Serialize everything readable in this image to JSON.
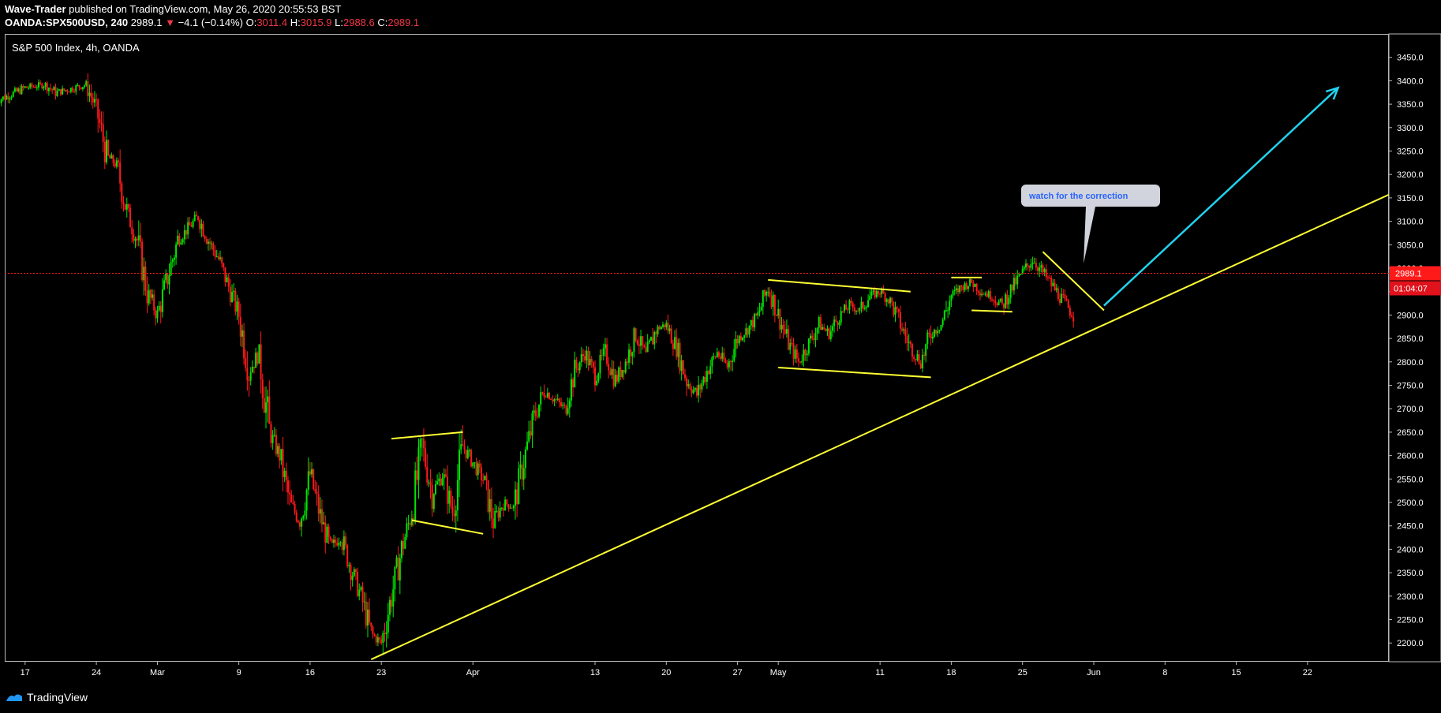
{
  "header": {
    "author": "Wave-Trader",
    "published_text": " published on TradingView.com, May 26, 2020 20:55:53 BST",
    "symbol": "OANDA:SPX500USD, 240",
    "last": "2989.1",
    "down_arrow": "▼",
    "change": "−4.1 (−0.14%)",
    "o_label": "O:",
    "o_value": "3011.4",
    "h_label": "H:",
    "h_value": "3015.9",
    "l_label": "L:",
    "l_value": "2988.6",
    "c_label": "C:",
    "c_value": "2989.1"
  },
  "chart_title": "S&P 500 Index, 4h, OANDA",
  "price_label": "2989.1",
  "countdown": "01:04:07",
  "annotation": "watch for the correction",
  "footer": {
    "brand": "TradingView",
    "logo_icon": "tradingview-logo-icon"
  },
  "colors": {
    "up": "#00e600",
    "down": "#ff1a1a",
    "trendline": "#ffff33",
    "projection": "#22d3ee",
    "current_price": "#ff1a1a",
    "annotation_bg": "#d1d4dc",
    "annotation_text": "#2962ff"
  },
  "chart_data": {
    "type": "candlestick",
    "title": "S&P 500 Index, 4h, OANDA",
    "ylim": [
      2160,
      3500
    ],
    "y_ticks": [
      2200,
      2250,
      2300,
      2350,
      2400,
      2450,
      2500,
      2550,
      2600,
      2650,
      2700,
      2750,
      2800,
      2850,
      2900,
      2950,
      3000,
      3050,
      3100,
      3150,
      3200,
      3250,
      3300,
      3350,
      3400,
      3450
    ],
    "y_tick_labels": [
      "2200.0",
      "2250.0",
      "2300.0",
      "2350.0",
      "2400.0",
      "2450.0",
      "2500.0",
      "2550.0",
      "2600.0",
      "2650.0",
      "2700.0",
      "2750.0",
      "2800.0",
      "2850.0",
      "2900.0",
      "2950.0",
      "3000.0",
      "3050.0",
      "3100.0",
      "3150.0",
      "3200.0",
      "3250.0",
      "3300.0",
      "3350.0",
      "3400.0",
      "3450.0"
    ],
    "x_range": [
      "2020-02-15",
      "2020-06-30"
    ],
    "x_ticks": [
      "2020-02-17",
      "2020-02-24",
      "2020-03-01",
      "2020-03-09",
      "2020-03-16",
      "2020-03-23",
      "2020-04-01",
      "2020-04-13",
      "2020-04-20",
      "2020-04-27",
      "2020-05-01",
      "2020-05-11",
      "2020-05-18",
      "2020-05-25",
      "2020-06-01",
      "2020-06-08",
      "2020-06-15",
      "2020-06-22"
    ],
    "x_tick_labels": [
      "17",
      "24",
      "Mar",
      "9",
      "16",
      "23",
      "Apr",
      "13",
      "20",
      "27",
      "May",
      "11",
      "18",
      "25",
      "Jun",
      "8",
      "15",
      "22"
    ],
    "current_price": 2989.1,
    "close_path": [
      [
        "2020-02-14",
        3355
      ],
      [
        "2020-02-17",
        3385
      ],
      [
        "2020-02-19",
        3392
      ],
      [
        "2020-02-20",
        3375
      ],
      [
        "2020-02-21",
        3380
      ],
      [
        "2020-02-23",
        3392
      ],
      [
        "2020-02-24",
        3340
      ],
      [
        "2020-02-25",
        3240
      ],
      [
        "2020-02-26",
        3220
      ],
      [
        "2020-02-27",
        3120
      ],
      [
        "2020-02-28",
        3060
      ],
      [
        "2020-02-29",
        2950
      ],
      [
        "2020-03-01",
        2900
      ],
      [
        "2020-03-03",
        3060
      ],
      [
        "2020-03-05",
        3110
      ],
      [
        "2020-03-06",
        3060
      ],
      [
        "2020-03-07",
        3020
      ],
      [
        "2020-03-09",
        2900
      ],
      [
        "2020-03-10",
        2780
      ],
      [
        "2020-03-11",
        2820
      ],
      [
        "2020-03-12",
        2650
      ],
      [
        "2020-03-13",
        2600
      ],
      [
        "2020-03-14",
        2500
      ],
      [
        "2020-03-15",
        2460
      ],
      [
        "2020-03-16",
        2560
      ],
      [
        "2020-03-17",
        2470
      ],
      [
        "2020-03-18",
        2400
      ],
      [
        "2020-03-19",
        2430
      ],
      [
        "2020-03-20",
        2360
      ],
      [
        "2020-03-21",
        2300
      ],
      [
        "2020-03-22",
        2220
      ],
      [
        "2020-03-23",
        2200
      ],
      [
        "2020-03-24",
        2300
      ],
      [
        "2020-03-25",
        2400
      ],
      [
        "2020-03-26",
        2480
      ],
      [
        "2020-03-27",
        2620
      ],
      [
        "2020-03-28",
        2520
      ],
      [
        "2020-03-29",
        2560
      ],
      [
        "2020-03-30",
        2480
      ],
      [
        "2020-03-31",
        2620
      ],
      [
        "2020-04-02",
        2550
      ],
      [
        "2020-04-03",
        2460
      ],
      [
        "2020-04-04",
        2500
      ],
      [
        "2020-04-05",
        2490
      ],
      [
        "2020-04-06",
        2590
      ],
      [
        "2020-04-07",
        2680
      ],
      [
        "2020-04-08",
        2740
      ],
      [
        "2020-04-10",
        2700
      ],
      [
        "2020-04-11",
        2780
      ],
      [
        "2020-04-12",
        2820
      ],
      [
        "2020-04-13",
        2770
      ],
      [
        "2020-04-14",
        2820
      ],
      [
        "2020-04-15",
        2760
      ],
      [
        "2020-04-16",
        2800
      ],
      [
        "2020-04-17",
        2860
      ],
      [
        "2020-04-18",
        2810
      ],
      [
        "2020-04-19",
        2870
      ],
      [
        "2020-04-20",
        2880
      ],
      [
        "2020-04-21",
        2830
      ],
      [
        "2020-04-22",
        2760
      ],
      [
        "2020-04-23",
        2730
      ],
      [
        "2020-04-24",
        2780
      ],
      [
        "2020-04-25",
        2820
      ],
      [
        "2020-04-26",
        2790
      ],
      [
        "2020-04-27",
        2850
      ],
      [
        "2020-04-28",
        2870
      ],
      [
        "2020-04-29",
        2900
      ],
      [
        "2020-04-30",
        2960
      ],
      [
        "2020-05-01",
        2900
      ],
      [
        "2020-05-02",
        2840
      ],
      [
        "2020-05-03",
        2800
      ],
      [
        "2020-05-04",
        2840
      ],
      [
        "2020-05-05",
        2880
      ],
      [
        "2020-05-06",
        2860
      ],
      [
        "2020-05-07",
        2900
      ],
      [
        "2020-05-08",
        2920
      ],
      [
        "2020-05-09",
        2910
      ],
      [
        "2020-05-10",
        2940
      ],
      [
        "2020-05-11",
        2950
      ],
      [
        "2020-05-12",
        2930
      ],
      [
        "2020-05-13",
        2880
      ],
      [
        "2020-05-14",
        2830
      ],
      [
        "2020-05-15",
        2800
      ],
      [
        "2020-05-16",
        2860
      ],
      [
        "2020-05-17",
        2880
      ],
      [
        "2020-05-18",
        2940
      ],
      [
        "2020-05-19",
        2960
      ],
      [
        "2020-05-20",
        2970
      ],
      [
        "2020-05-21",
        2950
      ],
      [
        "2020-05-22",
        2940
      ],
      [
        "2020-05-23",
        2920
      ],
      [
        "2020-05-24",
        2960
      ],
      [
        "2020-05-25",
        2990
      ],
      [
        "2020-05-26",
        3020
      ],
      [
        "2020-05-27",
        2990
      ],
      [
        "2020-05-28",
        2960
      ],
      [
        "2020-05-29",
        2930
      ],
      [
        "2020-05-30",
        2900
      ]
    ],
    "annotations": {
      "main_trendline": [
        [
          "2020-03-22",
          2165
        ],
        [
          "2020-06-30",
          3157
        ]
      ],
      "projection_arrow": [
        [
          "2020-06-02",
          2920
        ],
        [
          "2020-06-25",
          3385
        ]
      ],
      "channel_lines": [
        [
          [
            "2020-03-24",
            2636
          ],
          [
            "2020-03-31",
            2650
          ]
        ],
        [
          [
            "2020-03-26",
            2462
          ],
          [
            "2020-04-02",
            2433
          ]
        ],
        [
          [
            "2020-04-30",
            2975
          ],
          [
            "2020-05-14",
            2950
          ]
        ],
        [
          [
            "2020-05-01",
            2788
          ],
          [
            "2020-05-16",
            2767
          ]
        ],
        [
          [
            "2020-05-18",
            2980
          ],
          [
            "2020-05-21",
            2980
          ]
        ],
        [
          [
            "2020-05-20",
            2910
          ],
          [
            "2020-05-24",
            2907
          ]
        ],
        [
          [
            "2020-05-27",
            3035
          ],
          [
            "2020-06-02",
            2910
          ]
        ]
      ],
      "callout": {
        "text": "watch for the correction",
        "anchor": [
          "2020-05-31",
          3010
        ]
      }
    }
  }
}
